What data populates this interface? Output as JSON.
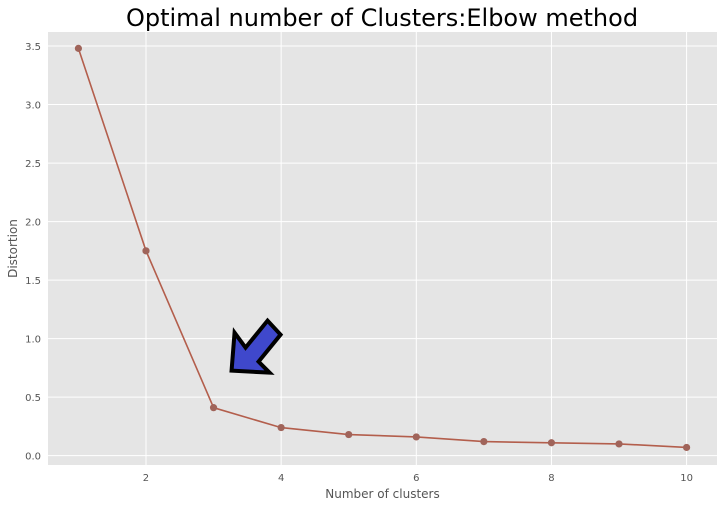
{
  "chart_data": {
    "type": "line",
    "title": "Optimal number of Clusters:Elbow method",
    "xlabel": "Number of clusters",
    "ylabel": "Distortion",
    "x": [
      1,
      2,
      3,
      4,
      5,
      6,
      7,
      8,
      9,
      10
    ],
    "series": [
      {
        "values": [
          3.48,
          1.75,
          0.41,
          0.24,
          0.18,
          0.16,
          0.12,
          0.11,
          0.1,
          0.07
        ]
      }
    ],
    "xlim": [
      0.55,
      10.45
    ],
    "ylim": [
      -0.08,
      3.62
    ],
    "xticks": [
      2,
      4,
      6,
      8,
      10
    ],
    "yticks": [
      0.0,
      0.5,
      1.0,
      1.5,
      2.0,
      2.5,
      3.0,
      3.5
    ],
    "ytick_labels": [
      "0.0",
      "0.5",
      "1.0",
      "1.5",
      "2.0",
      "2.5",
      "3.0",
      "3.5"
    ],
    "grid": true,
    "colors": {
      "background": "#e5e5e5",
      "grid": "#ffffff",
      "line": "#b35e4c",
      "marker": "#a0645a",
      "arrow_fill": "#3f48cc",
      "arrow_stroke": "#000000"
    },
    "annotation": {
      "type": "arrow",
      "points_to_x": 3
    }
  }
}
